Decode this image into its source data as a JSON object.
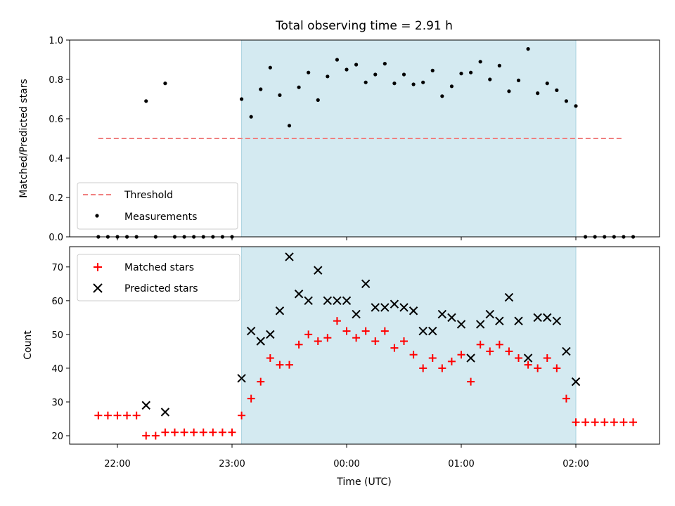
{
  "chart_data": [
    {
      "type": "scatter",
      "title": "Total observing time = 2.91 h",
      "xlabel": "",
      "ylabel": "Matched/Predicted stars",
      "ylim": [
        0.0,
        1.0
      ],
      "yticks": [
        "0.0",
        "0.2",
        "0.4",
        "0.6",
        "0.8",
        "1.0"
      ],
      "shaded_region": [
        "23:05",
        "02:00"
      ],
      "shade_color": "#d4eaf1",
      "legend_position": "lower left",
      "series": [
        {
          "name": "Threshold",
          "style": "dashed-line",
          "color": "#f08080",
          "x": [
            "21:50",
            "02:25"
          ],
          "y": [
            0.5,
            0.5
          ]
        },
        {
          "name": "Measurements",
          "style": "dot",
          "color": "#000000",
          "x": [
            "21:50",
            "21:55",
            "22:00",
            "22:05",
            "22:10",
            "22:15",
            "22:20",
            "22:25",
            "22:30",
            "22:35",
            "22:40",
            "22:45",
            "22:50",
            "22:55",
            "23:00",
            "23:05",
            "23:10",
            "23:15",
            "23:20",
            "23:25",
            "23:30",
            "23:35",
            "23:40",
            "23:45",
            "23:50",
            "23:55",
            "00:00",
            "00:05",
            "00:10",
            "00:15",
            "00:20",
            "00:25",
            "00:30",
            "00:35",
            "00:40",
            "00:45",
            "00:50",
            "00:55",
            "01:00",
            "01:05",
            "01:10",
            "01:15",
            "01:20",
            "01:25",
            "01:30",
            "01:35",
            "01:40",
            "01:45",
            "01:50",
            "01:55",
            "02:00",
            "02:05",
            "02:10",
            "02:15",
            "02:20",
            "02:25",
            "02:30"
          ],
          "y": [
            0,
            0,
            0,
            0,
            0,
            0.69,
            0,
            0.78,
            0,
            0,
            0,
            0,
            0,
            0,
            0,
            0.7,
            0.61,
            0.75,
            0.86,
            0.72,
            0.565,
            0.76,
            0.835,
            0.695,
            0.815,
            0.9,
            0.85,
            0.875,
            0.785,
            0.825,
            0.88,
            0.78,
            0.825,
            0.775,
            0.785,
            0.845,
            0.715,
            0.765,
            0.83,
            0.835,
            0.89,
            0.8,
            0.87,
            0.74,
            0.795,
            0.955,
            0.73,
            0.78,
            0.745,
            0.69,
            0.665,
            0,
            0,
            0,
            0,
            0,
            0
          ]
        }
      ]
    },
    {
      "type": "scatter",
      "title": "",
      "xlabel": "Time (UTC)",
      "ylabel": "Count",
      "ylim": [
        17.5,
        76
      ],
      "yticks": [
        "20",
        "30",
        "40",
        "50",
        "60",
        "70"
      ],
      "xticks": [
        "22:00",
        "23:00",
        "00:00",
        "01:00",
        "02:00"
      ],
      "shaded_region": [
        "23:05",
        "02:00"
      ],
      "legend_position": "upper left",
      "series": [
        {
          "name": "Matched stars",
          "style": "plus",
          "color": "#ff0000",
          "x": [
            "21:50",
            "21:55",
            "22:00",
            "22:05",
            "22:10",
            "22:15",
            "22:20",
            "22:25",
            "22:30",
            "22:35",
            "22:40",
            "22:45",
            "22:50",
            "22:55",
            "23:00",
            "23:05",
            "23:10",
            "23:15",
            "23:20",
            "23:25",
            "23:30",
            "23:35",
            "23:40",
            "23:45",
            "23:50",
            "23:55",
            "00:00",
            "00:05",
            "00:10",
            "00:15",
            "00:20",
            "00:25",
            "00:30",
            "00:35",
            "00:40",
            "00:45",
            "00:50",
            "00:55",
            "01:00",
            "01:05",
            "01:10",
            "01:15",
            "01:20",
            "01:25",
            "01:30",
            "01:35",
            "01:40",
            "01:45",
            "01:50",
            "01:55",
            "02:00",
            "02:05",
            "02:10",
            "02:15",
            "02:20",
            "02:25",
            "02:30"
          ],
          "y": [
            26,
            26,
            26,
            26,
            26,
            20,
            20,
            21,
            21,
            21,
            21,
            21,
            21,
            21,
            21,
            26,
            31,
            36,
            43,
            41,
            41,
            47,
            50,
            48,
            49,
            54,
            51,
            49,
            51,
            48,
            51,
            46,
            48,
            44,
            40,
            43,
            40,
            42,
            44,
            36,
            47,
            45,
            47,
            45,
            43,
            41,
            40,
            43,
            40,
            31,
            24,
            24,
            24,
            24,
            24,
            24,
            24
          ]
        },
        {
          "name": "Predicted stars",
          "style": "x",
          "color": "#000000",
          "x": [
            "22:15",
            "22:25",
            "23:05",
            "23:10",
            "23:15",
            "23:20",
            "23:25",
            "23:30",
            "23:35",
            "23:40",
            "23:45",
            "23:50",
            "23:55",
            "00:00",
            "00:05",
            "00:10",
            "00:15",
            "00:20",
            "00:25",
            "00:30",
            "00:35",
            "00:40",
            "00:45",
            "00:50",
            "00:55",
            "01:00",
            "01:05",
            "01:10",
            "01:15",
            "01:20",
            "01:25",
            "01:30",
            "01:35",
            "01:40",
            "01:45",
            "01:50",
            "01:55",
            "02:00"
          ],
          "y": [
            29,
            27,
            37,
            51,
            48,
            50,
            57,
            73,
            62,
            60,
            69,
            60,
            60,
            60,
            56,
            65,
            58,
            58,
            59,
            58,
            57,
            51,
            51,
            56,
            55,
            53,
            43,
            53,
            56,
            54,
            61,
            54,
            43,
            55,
            55,
            54,
            45,
            36
          ]
        }
      ]
    }
  ]
}
